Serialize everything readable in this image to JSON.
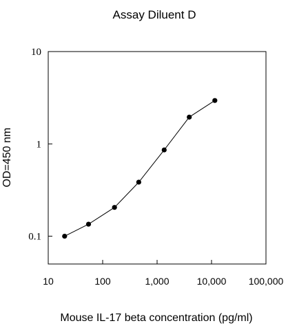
{
  "chart_data": {
    "type": "line",
    "title": "Assay Diluent D",
    "xlabel": "Mouse IL-17 beta concentration (pg/ml)",
    "ylabel": "OD=450 nm",
    "x_scale": "log",
    "y_scale": "log",
    "xlim": [
      10,
      100000
    ],
    "ylim": [
      0.05,
      10
    ],
    "x_ticks": [
      {
        "value": 10,
        "label": "10"
      },
      {
        "value": 100,
        "label": "100"
      },
      {
        "value": 1000,
        "label": "1,000"
      },
      {
        "value": 10000,
        "label": "10,000"
      },
      {
        "value": 100000,
        "label": "100,000"
      }
    ],
    "y_ticks": [
      {
        "value": 0.1,
        "label": "0.1"
      },
      {
        "value": 1,
        "label": "1"
      },
      {
        "value": 10,
        "label": "10"
      }
    ],
    "grid": false,
    "legend": "none",
    "series": [
      {
        "x": [
          20,
          55,
          165,
          460,
          1350,
          3900,
          11500
        ],
        "y": [
          0.1,
          0.135,
          0.205,
          0.385,
          0.86,
          1.95,
          2.95
        ]
      }
    ],
    "marker": "filled-circle",
    "colors": {
      "line": "#000000",
      "marker": "#000000",
      "axes": "#000000"
    }
  }
}
